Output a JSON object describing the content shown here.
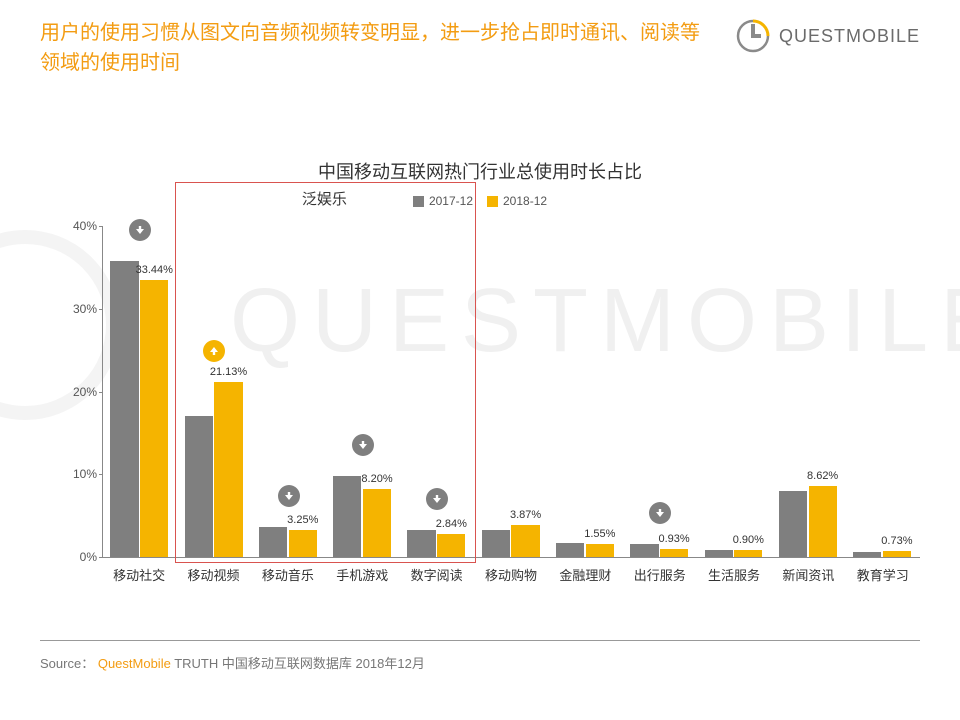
{
  "header": {
    "title": "用户的使用习惯从图文向音频视频转变明显，进一步抢占即时通讯、阅读等领域的使用时间",
    "logo_text": "QUESTMOBILE"
  },
  "chart": {
    "type": "bar",
    "title": "中国移动互联网热门行业总使用时长占比",
    "legend": [
      {
        "label": "2017-12",
        "color": "#7f7f7f"
      },
      {
        "label": "2018-12",
        "color": "#f5b400"
      }
    ],
    "ylim": [
      0,
      40
    ],
    "ytick_step": 10,
    "y_suffix": "%",
    "bar_width_pct": 38,
    "colors": {
      "series_a": "#7f7f7f",
      "series_b": "#f5b400",
      "axis": "#888888",
      "text": "#333333"
    },
    "categories": [
      {
        "name": "移动社交",
        "a": 35.8,
        "b": 33.44,
        "label_b": "33.44%",
        "arrow": "down",
        "arrow_color": "#7f7f7f"
      },
      {
        "name": "移动视频",
        "a": 17.0,
        "b": 21.13,
        "label_b": "21.13%",
        "arrow": "up",
        "arrow_color": "#f5b400"
      },
      {
        "name": "移动音乐",
        "a": 3.6,
        "b": 3.25,
        "label_b": "3.25%",
        "arrow": "down",
        "arrow_color": "#7f7f7f"
      },
      {
        "name": "手机游戏",
        "a": 9.8,
        "b": 8.2,
        "label_b": "8.20%",
        "arrow": "down",
        "arrow_color": "#7f7f7f"
      },
      {
        "name": "数字阅读",
        "a": 3.3,
        "b": 2.84,
        "label_b": "2.84%",
        "arrow": "down",
        "arrow_color": "#7f7f7f"
      },
      {
        "name": "移动购物",
        "a": 3.3,
        "b": 3.87,
        "label_b": "3.87%",
        "arrow": null,
        "arrow_color": null
      },
      {
        "name": "金融理财",
        "a": 1.7,
        "b": 1.55,
        "label_b": "1.55%",
        "arrow": null,
        "arrow_color": null
      },
      {
        "name": "出行服务",
        "a": 1.6,
        "b": 0.93,
        "label_b": "0.93%",
        "arrow": "down",
        "arrow_color": "#7f7f7f"
      },
      {
        "name": "生活服务",
        "a": 0.8,
        "b": 0.9,
        "label_b": "0.90%",
        "arrow": null,
        "arrow_color": null
      },
      {
        "name": "新闻资讯",
        "a": 8.0,
        "b": 8.62,
        "label_b": "8.62%",
        "arrow": null,
        "arrow_color": null
      },
      {
        "name": "教育学习",
        "a": 0.6,
        "b": 0.73,
        "label_b": "0.73%",
        "arrow": null,
        "arrow_color": null
      }
    ],
    "highlight": {
      "label": "泛娱乐",
      "from_index": 1,
      "to_index": 4,
      "border_color": "#d9534f"
    }
  },
  "footer": {
    "prefix": "Source：",
    "brand": "QuestMobile",
    "rest": "TRUTH 中国移动互联网数据库 2018年12月"
  },
  "watermark": {
    "text": "QUESTMOBILE",
    "color": "#f3f3f3"
  }
}
